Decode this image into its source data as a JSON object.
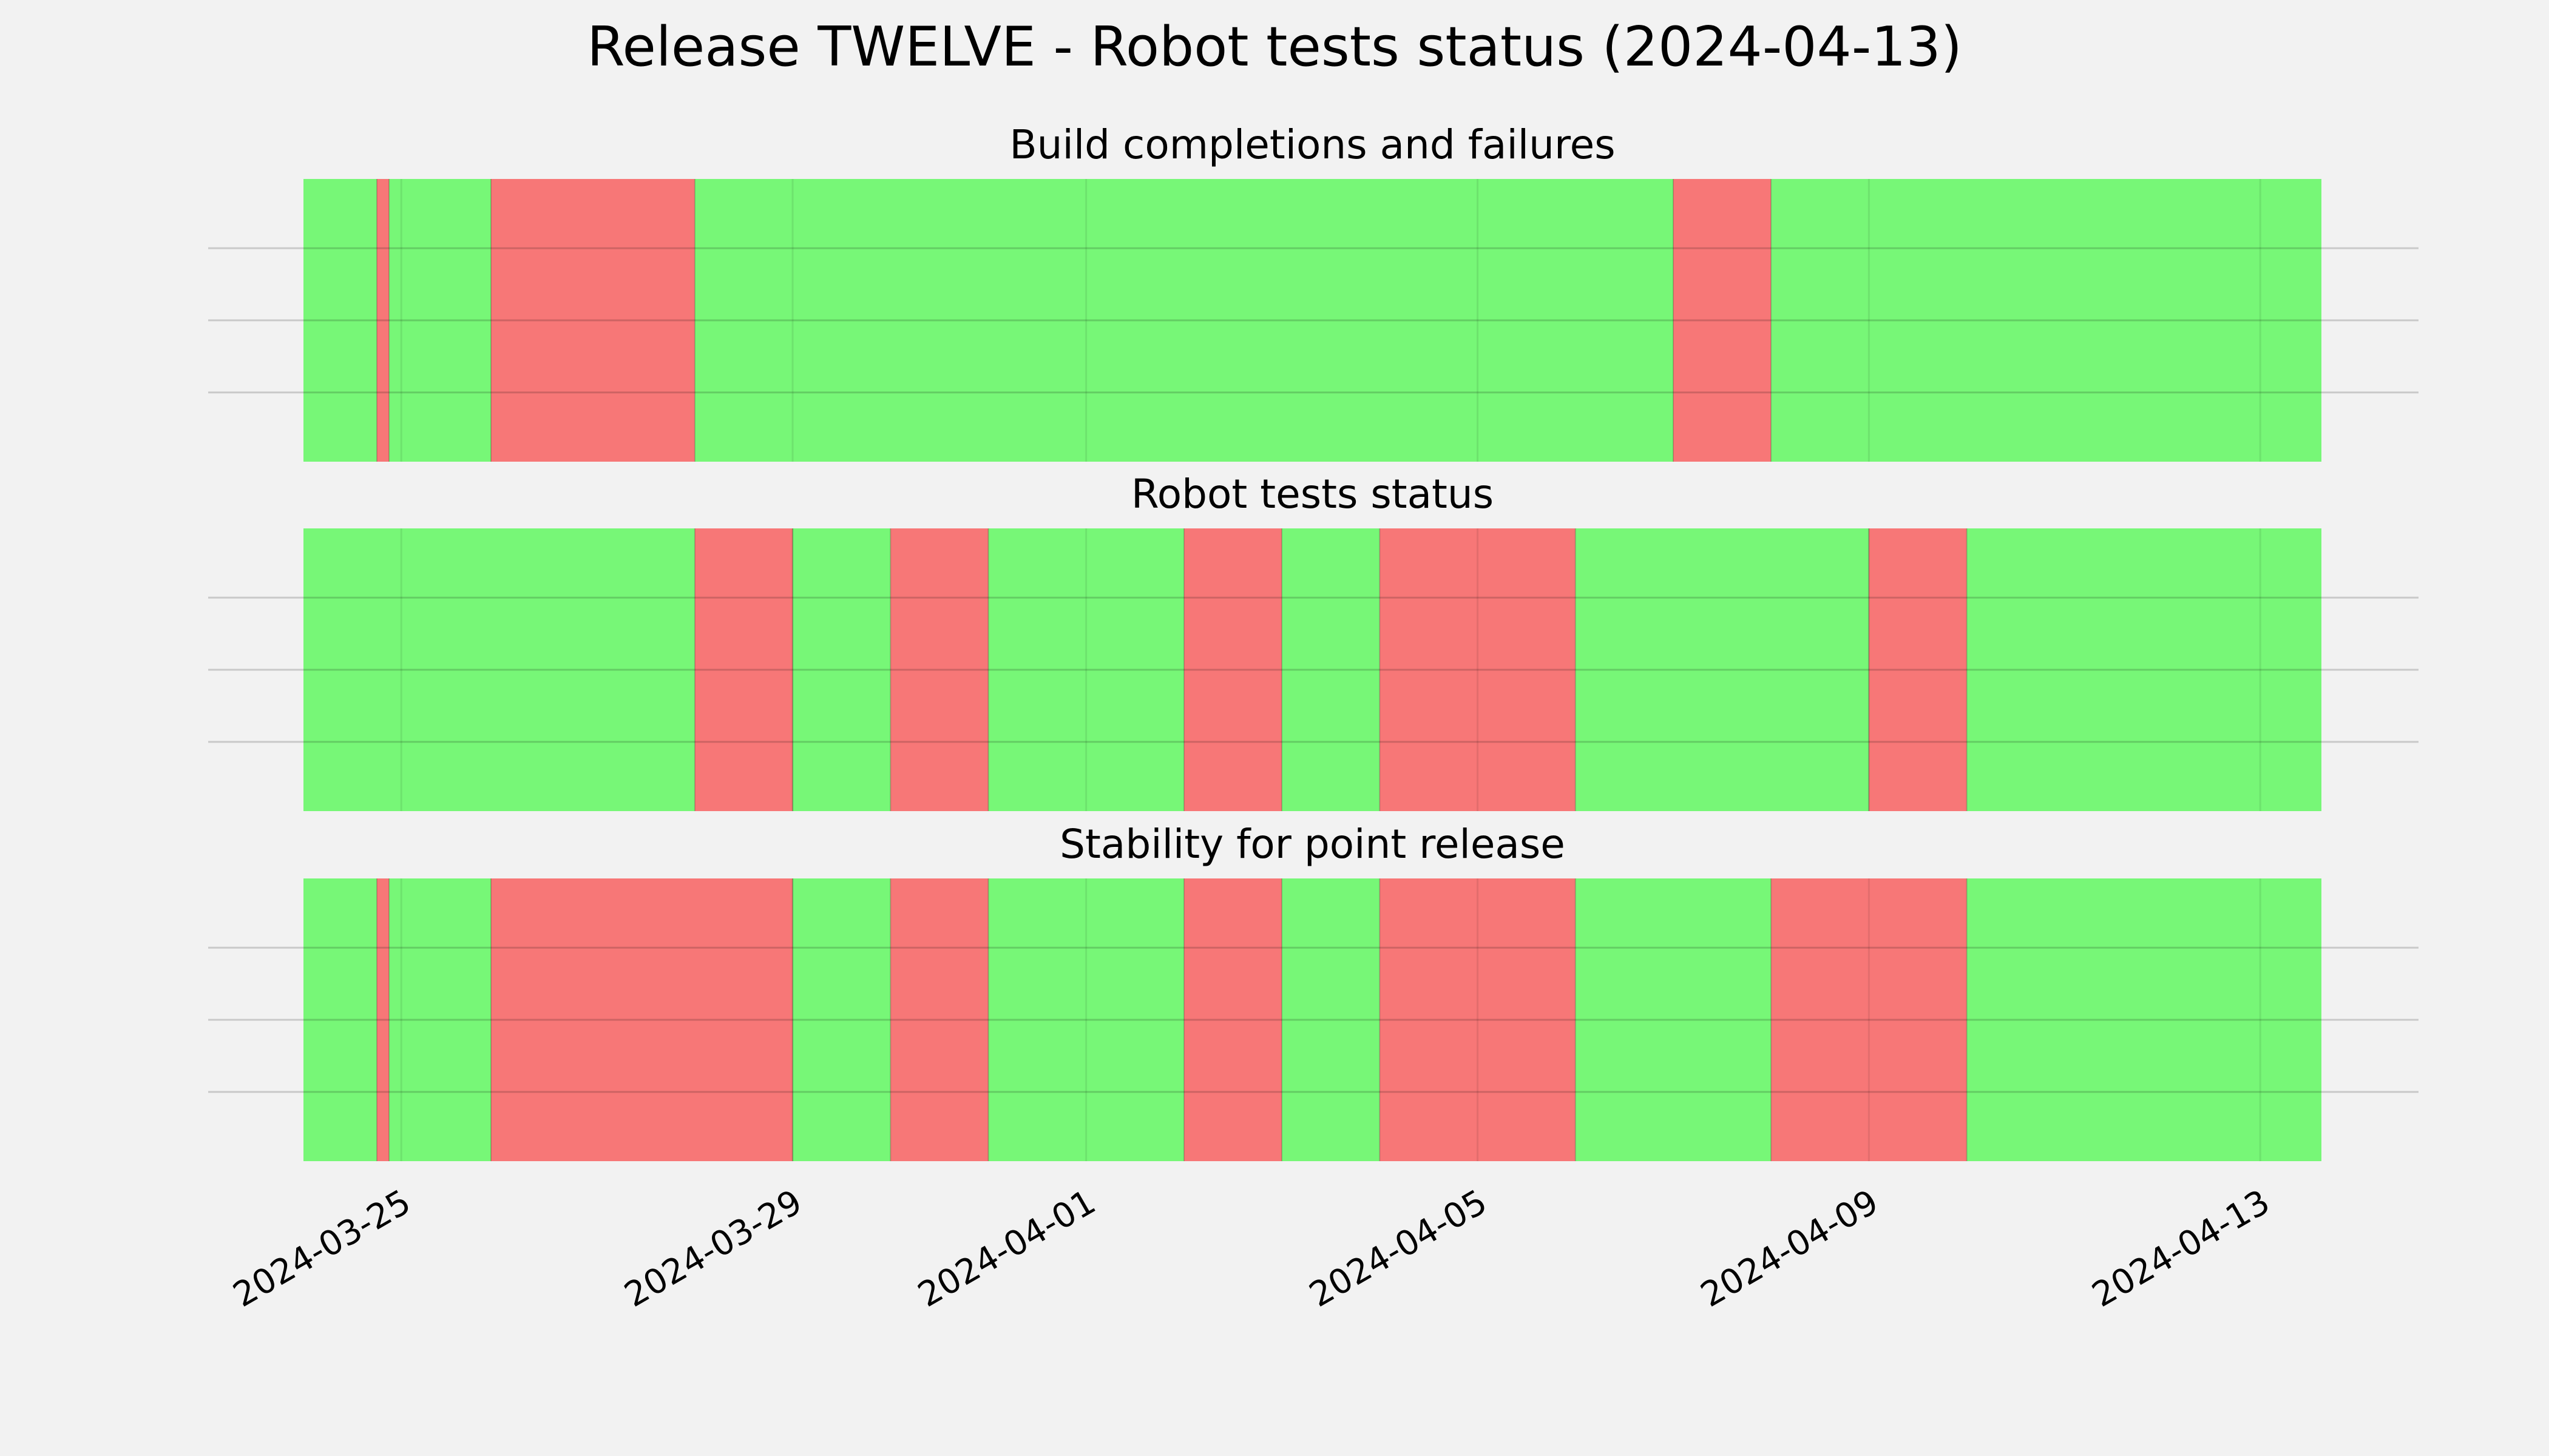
{
  "chart_data": {
    "type": "timeline",
    "title": "Release TWELVE - Robot tests status (2024-04-13)",
    "x_range": [
      "2024-03-24",
      "2024-04-13T15:00"
    ],
    "x_ticks": [
      "2024-03-25",
      "2024-03-29",
      "2024-04-01",
      "2024-04-05",
      "2024-04-09",
      "2024-04-13"
    ],
    "grid": true,
    "colors": {
      "pass": "#77f777",
      "fail": "#f77777"
    },
    "panels": [
      {
        "title": "Build completions and failures",
        "segments": [
          {
            "start": "2024-03-24",
            "end": "2024-03-24T18:00",
            "status": "pass"
          },
          {
            "start": "2024-03-24T18:00",
            "end": "2024-03-24T21:00",
            "status": "fail"
          },
          {
            "start": "2024-03-24T21:00",
            "end": "2024-03-25T22:00",
            "status": "pass"
          },
          {
            "start": "2024-03-25T22:00",
            "end": "2024-03-28",
            "status": "fail"
          },
          {
            "start": "2024-03-28",
            "end": "2024-04-07",
            "status": "pass"
          },
          {
            "start": "2024-04-07",
            "end": "2024-04-08",
            "status": "fail"
          },
          {
            "start": "2024-04-08",
            "end": "2024-04-13T15:00",
            "status": "pass"
          }
        ]
      },
      {
        "title": "Robot tests status",
        "segments": [
          {
            "start": "2024-03-24",
            "end": "2024-03-28",
            "status": "pass"
          },
          {
            "start": "2024-03-28",
            "end": "2024-03-29",
            "status": "fail"
          },
          {
            "start": "2024-03-29",
            "end": "2024-03-30",
            "status": "pass"
          },
          {
            "start": "2024-03-30",
            "end": "2024-03-31",
            "status": "fail"
          },
          {
            "start": "2024-03-31",
            "end": "2024-04-02",
            "status": "pass"
          },
          {
            "start": "2024-04-02",
            "end": "2024-04-03",
            "status": "fail"
          },
          {
            "start": "2024-04-03",
            "end": "2024-04-04",
            "status": "pass"
          },
          {
            "start": "2024-04-04",
            "end": "2024-04-06",
            "status": "fail"
          },
          {
            "start": "2024-04-06",
            "end": "2024-04-09",
            "status": "pass"
          },
          {
            "start": "2024-04-09",
            "end": "2024-04-10",
            "status": "fail"
          },
          {
            "start": "2024-04-10",
            "end": "2024-04-13T15:00",
            "status": "pass"
          }
        ]
      },
      {
        "title": "Stability for point release",
        "segments": [
          {
            "start": "2024-03-24",
            "end": "2024-03-24T18:00",
            "status": "pass"
          },
          {
            "start": "2024-03-24T18:00",
            "end": "2024-03-24T21:00",
            "status": "fail"
          },
          {
            "start": "2024-03-24T21:00",
            "end": "2024-03-25T22:00",
            "status": "pass"
          },
          {
            "start": "2024-03-25T22:00",
            "end": "2024-03-29",
            "status": "fail"
          },
          {
            "start": "2024-03-29",
            "end": "2024-03-30",
            "status": "pass"
          },
          {
            "start": "2024-03-30",
            "end": "2024-03-31",
            "status": "fail"
          },
          {
            "start": "2024-03-31",
            "end": "2024-04-02",
            "status": "pass"
          },
          {
            "start": "2024-04-02",
            "end": "2024-04-03",
            "status": "fail"
          },
          {
            "start": "2024-04-03",
            "end": "2024-04-04",
            "status": "pass"
          },
          {
            "start": "2024-04-04",
            "end": "2024-04-06",
            "status": "fail"
          },
          {
            "start": "2024-04-06",
            "end": "2024-04-08",
            "status": "pass"
          },
          {
            "start": "2024-04-08",
            "end": "2024-04-10",
            "status": "fail"
          },
          {
            "start": "2024-04-10",
            "end": "2024-04-13T15:00",
            "status": "pass"
          }
        ]
      }
    ]
  }
}
